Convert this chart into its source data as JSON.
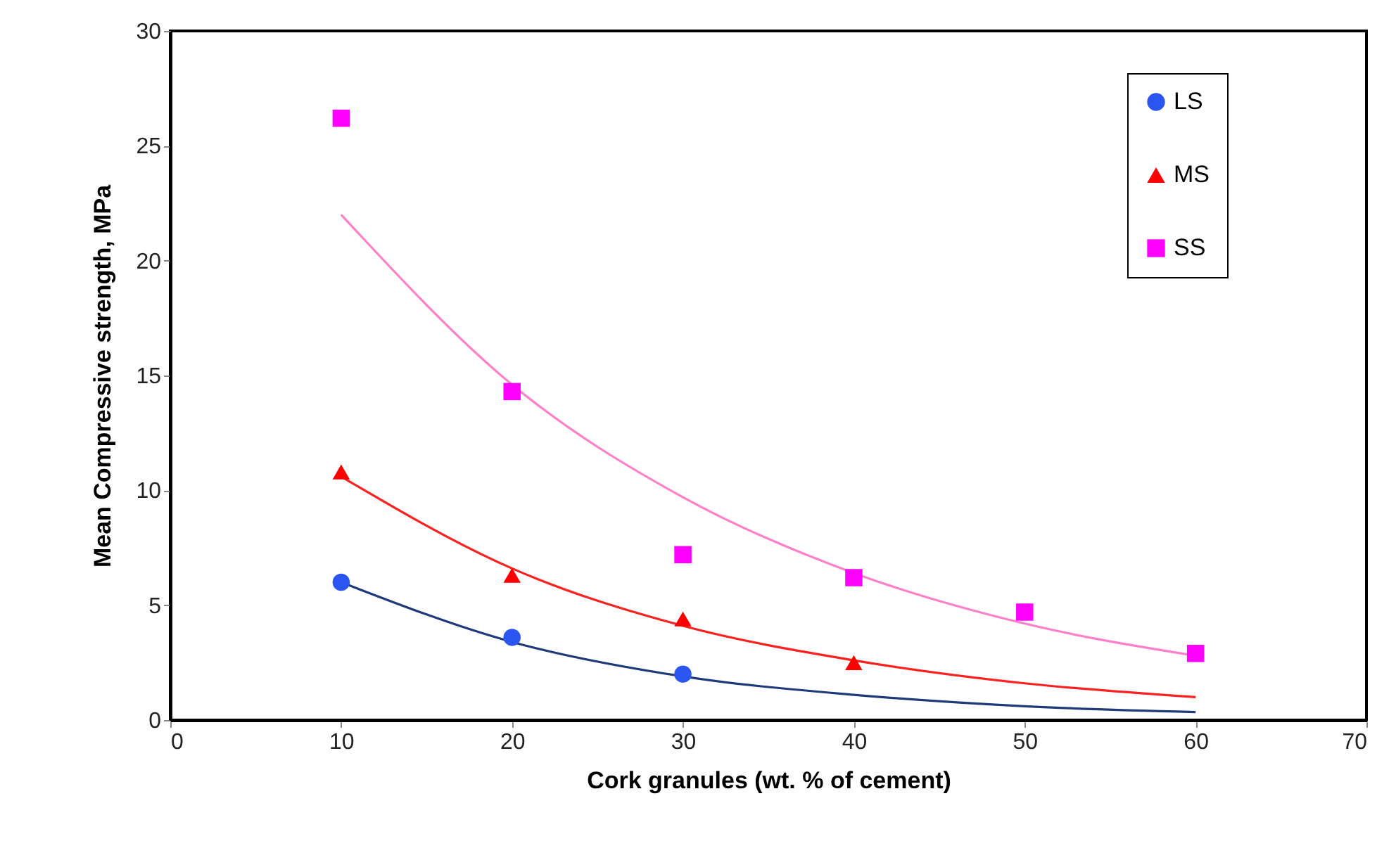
{
  "chart_data": {
    "type": "scatter",
    "xlabel": "Cork granules (wt. % of cement)",
    "ylabel": "Mean Compressive strength, MPa",
    "xlim": [
      0,
      70
    ],
    "xticks": [
      0,
      10,
      20,
      30,
      40,
      50,
      60,
      70
    ],
    "ylim": [
      0,
      30
    ],
    "yticks": [
      0,
      5,
      10,
      15,
      20,
      25,
      30
    ],
    "grid": false,
    "legend": "top right",
    "series": [
      {
        "type": "line",
        "color": "#1f3a7a",
        "x": [
          10,
          20,
          30,
          40,
          50,
          60
        ],
        "values": [
          6.0,
          3.4,
          1.9,
          1.1,
          0.6,
          0.35
        ],
        "marker": "none"
      },
      {
        "type": "line",
        "color": "#ff2020",
        "x": [
          10,
          20,
          30,
          40,
          50,
          60
        ],
        "values": [
          10.6,
          6.6,
          4.1,
          2.6,
          1.6,
          1.0
        ],
        "marker": "none"
      },
      {
        "type": "line",
        "color": "#ff80c8",
        "x": [
          10,
          20,
          30,
          40,
          50,
          60
        ],
        "values": [
          22.0,
          14.6,
          9.7,
          6.4,
          4.2,
          2.8
        ],
        "marker": "none"
      },
      {
        "name": "LS",
        "color": "#2a55f0",
        "marker": "circle",
        "x": [
          10,
          20,
          30
        ],
        "values": [
          6.0,
          3.6,
          2.0
        ]
      },
      {
        "name": "MS",
        "color": "#ff0000",
        "marker": "triangle",
        "x": [
          10,
          20,
          30,
          40
        ],
        "values": [
          10.8,
          6.3,
          4.4,
          2.5
        ]
      },
      {
        "name": "SS",
        "color": "#ff00ff",
        "marker": "square",
        "x": [
          10,
          20,
          30,
          40,
          50,
          60
        ],
        "values": [
          26.2,
          14.3,
          7.2,
          6.2,
          4.7,
          2.9
        ]
      }
    ]
  }
}
